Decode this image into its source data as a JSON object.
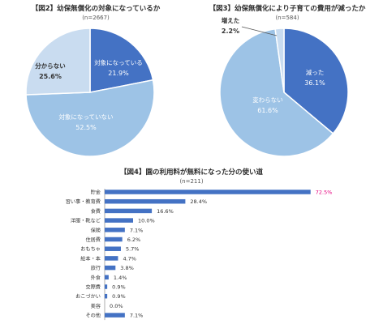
{
  "chart_data": [
    {
      "type": "pie",
      "title": "【図2】幼保無償化の対象になっているか",
      "n_label": "(n=2667)",
      "slices": [
        {
          "label": "対象になっている",
          "value": 21.9,
          "value_label": "21.9%",
          "color": "#4472c4"
        },
        {
          "label": "対象になっていない",
          "value": 52.5,
          "value_label": "52.5%",
          "color": "#9dc3e6"
        },
        {
          "label": "分からない",
          "value": 25.6,
          "value_label": "25.6%",
          "color": "#c9dcf0"
        }
      ]
    },
    {
      "type": "pie",
      "title": "【図3】幼保無償化により子育ての費用が減ったか",
      "n_label": "(n=584)",
      "slices": [
        {
          "label": "減った",
          "value": 36.1,
          "value_label": "36.1%",
          "color": "#4472c4"
        },
        {
          "label": "変わらない",
          "value": 61.6,
          "value_label": "61.6%",
          "color": "#9dc3e6"
        },
        {
          "label": "増えた",
          "value": 2.2,
          "value_label": "2.2%",
          "color": "#c9dcf0"
        }
      ]
    },
    {
      "type": "bar",
      "orientation": "horizontal",
      "title": "【図4】園の利用料が無料になった分の使い道",
      "n_label": "(n=211)",
      "xlim": [
        0,
        80
      ],
      "categories": [
        "貯金",
        "習い事・教育費",
        "食費",
        "洋服・靴など",
        "保険",
        "住居費",
        "おもちゃ",
        "絵本・本",
        "旅行",
        "外食",
        "交際費",
        "おこづかい",
        "美容",
        "その他"
      ],
      "values": [
        72.5,
        28.4,
        16.6,
        10.0,
        7.1,
        6.2,
        5.7,
        4.7,
        3.8,
        1.4,
        0.9,
        0.9,
        0.0,
        7.1
      ],
      "value_labels": [
        "72.5%",
        "28.4%",
        "16.6%",
        "10.0%",
        "7.1%",
        "6.2%",
        "5.7%",
        "4.7%",
        "3.8%",
        "1.4%",
        "0.9%",
        "0.9%",
        "0.0%",
        "7.1%"
      ],
      "bar_color": "#4472c4",
      "highlight_label_color": "#e6007e"
    }
  ]
}
